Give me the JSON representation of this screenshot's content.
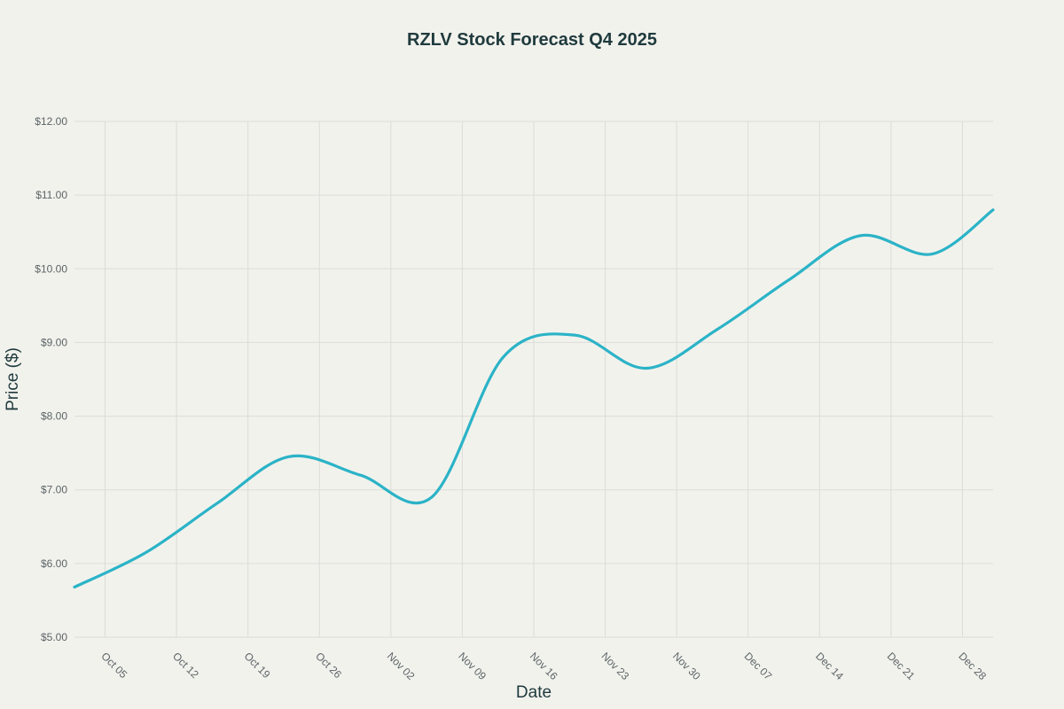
{
  "chart_data": {
    "type": "line",
    "title": "RZLV Stock Forecast Q4 2025",
    "xlabel": "Date",
    "ylabel": "Price ($)",
    "x_range": [
      "2025-10-02",
      "2025-12-31"
    ],
    "ylim": [
      5,
      12
    ],
    "y_ticks": [
      5,
      6,
      7,
      8,
      9,
      10,
      11,
      12
    ],
    "y_tick_labels": [
      "$5.00",
      "$6.00",
      "$7.00",
      "$8.00",
      "$9.00",
      "$10.00",
      "$11.00",
      "$12.00"
    ],
    "x_ticks": [
      "2025-10-05",
      "2025-10-12",
      "2025-10-19",
      "2025-10-26",
      "2025-11-02",
      "2025-11-09",
      "2025-11-16",
      "2025-11-23",
      "2025-11-30",
      "2025-12-07",
      "2025-12-14",
      "2025-12-21",
      "2025-12-28"
    ],
    "x_tick_labels": [
      "Oct 05",
      "Oct 12",
      "Oct 19",
      "Oct 26",
      "Nov 02",
      "Nov 09",
      "Nov 16",
      "Nov 23",
      "Nov 30",
      "Dec 07",
      "Dec 14",
      "Dec 21",
      "Dec 28"
    ],
    "grid": true,
    "legend": "none",
    "series": [
      {
        "color": "#2bb3c7",
        "x": [
          "2025-10-02",
          "2025-10-09",
          "2025-10-16",
          "2025-10-23",
          "2025-10-30",
          "2025-11-06",
          "2025-11-13",
          "2025-11-20",
          "2025-11-27",
          "2025-12-04",
          "2025-12-11",
          "2025-12-18",
          "2025-12-25",
          "2025-12-31"
        ],
        "y": [
          5.68,
          6.15,
          6.82,
          7.45,
          7.2,
          6.9,
          8.8,
          9.1,
          8.65,
          9.18,
          9.85,
          10.45,
          10.2,
          10.8
        ]
      }
    ]
  }
}
